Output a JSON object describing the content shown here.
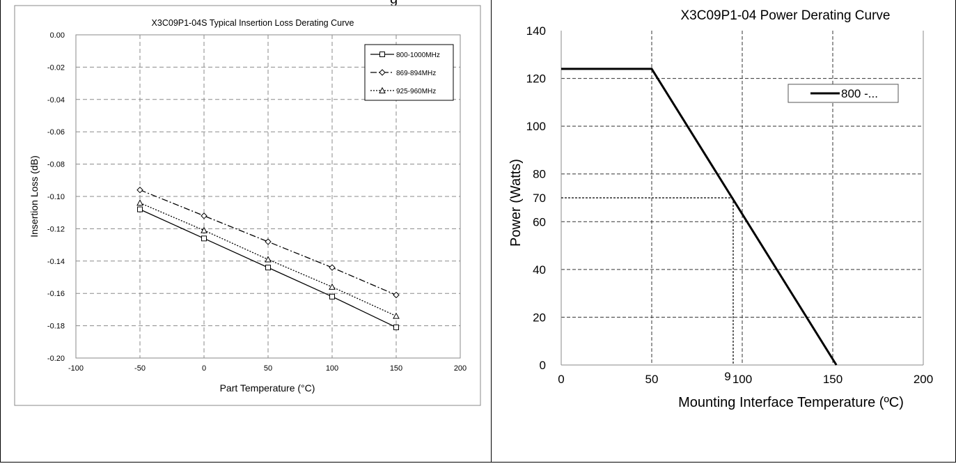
{
  "top_partial_text": "g",
  "charts": [
    {
      "type": "line",
      "title": "X3C09P1-04S Typical Insertion  Loss Derating Curve",
      "xlabel": "Part Temperature  (°C)",
      "ylabel": "Insertion  Loss (dB)",
      "xlim": [
        -100,
        200
      ],
      "ylim": [
        -0.2,
        0.0
      ],
      "xticks": [
        -100,
        -50,
        0,
        50,
        100,
        150,
        200
      ],
      "xtick_labels": [
        "-100",
        "-50",
        "0",
        "50",
        "100",
        "150",
        "200"
      ],
      "yticks": [
        0.0,
        -0.02,
        -0.04,
        -0.06,
        -0.08,
        -0.1,
        -0.12,
        -0.14,
        -0.16,
        -0.18,
        -0.2
      ],
      "ytick_labels": [
        "0.00",
        "-0.02",
        "-0.04",
        "-0.06",
        "-0.08",
        "-0.10",
        "-0.12",
        "-0.14",
        "-0.16",
        "-0.18",
        "-0.20"
      ],
      "grid": true,
      "legend_position": "top-right",
      "series": [
        {
          "name": "800-1000MHz",
          "x": [
            -50,
            0,
            50,
            100,
            150
          ],
          "y": [
            -0.108,
            -0.126,
            -0.144,
            -0.162,
            -0.181
          ],
          "line_style": "solid",
          "marker": "square",
          "color": "#000000"
        },
        {
          "name": "869-894MHz",
          "x": [
            -50,
            0,
            50,
            100,
            150
          ],
          "y": [
            -0.096,
            -0.112,
            -0.128,
            -0.144,
            -0.161
          ],
          "line_style": "dashdot",
          "marker": "diamond",
          "color": "#000000"
        },
        {
          "name": "925-960MHz",
          "x": [
            -50,
            0,
            50,
            100,
            150
          ],
          "y": [
            -0.104,
            -0.121,
            -0.139,
            -0.156,
            -0.174
          ],
          "line_style": "dotted",
          "marker": "triangle",
          "color": "#000000"
        }
      ]
    },
    {
      "type": "line",
      "title": "X3C09P1-04 Power Derating Curve",
      "xlabel": "Mounting Interface Temperature (ºC)",
      "ylabel": "Power (Watts)",
      "xlim": [
        0,
        200
      ],
      "ylim": [
        0,
        140
      ],
      "xticks": [
        0,
        50,
        100,
        150,
        200
      ],
      "xtick_labels": [
        "0",
        "50",
        "100",
        "150",
        "200"
      ],
      "yticks": [
        0,
        20,
        40,
        60,
        80,
        100,
        120,
        140
      ],
      "ytick_labels": [
        "0",
        "20",
        "40",
        "60",
        "80",
        "100",
        "120",
        "140"
      ],
      "grid": true,
      "legend_position": "top-right",
      "series": [
        {
          "name": "800 -...",
          "x": [
            0,
            50,
            152
          ],
          "y": [
            124,
            124,
            0
          ],
          "line_style": "solid",
          "color": "#000000"
        }
      ],
      "annotations": {
        "marker_y": 70,
        "marker_y_label": "70",
        "marker_x": 95,
        "marker_x_label": "9"
      }
    }
  ]
}
